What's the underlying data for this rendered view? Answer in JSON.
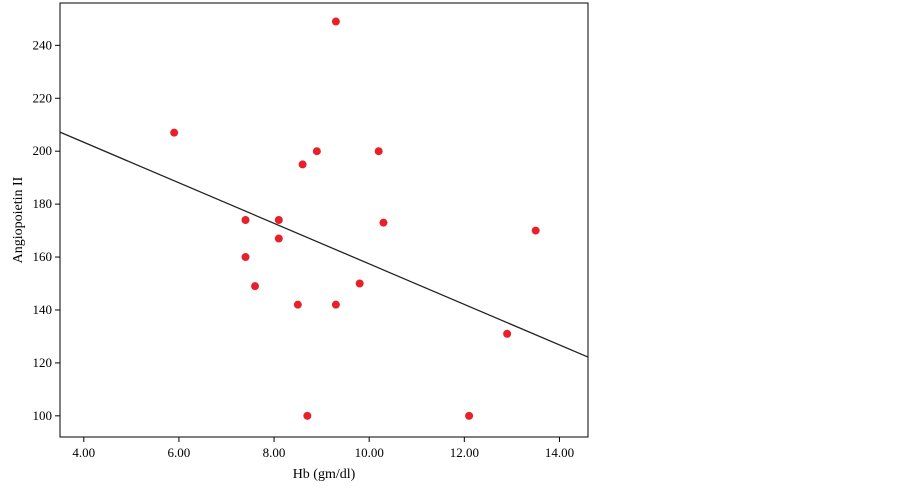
{
  "colors": {
    "point": "#e8202a",
    "line": "#222222",
    "frame": "#000000",
    "background": "#ffffff"
  },
  "chart_data": {
    "type": "scatter",
    "title": "",
    "xlabel": "Hb (gm/dl)",
    "ylabel": "Angiopoietin II",
    "xlim": [
      3.5,
      14.6
    ],
    "ylim": [
      92,
      256
    ],
    "xticks": [
      4,
      6,
      8,
      10,
      12,
      14
    ],
    "xtick_labels": [
      "4.00",
      "6.00",
      "8.00",
      "10.00",
      "12.00",
      "14.00"
    ],
    "yticks": [
      100,
      120,
      140,
      160,
      180,
      200,
      220,
      240
    ],
    "ytick_labels": [
      "100",
      "120",
      "140",
      "160",
      "180",
      "200",
      "220",
      "240"
    ],
    "grid": false,
    "points": [
      {
        "x": 5.9,
        "y": 207
      },
      {
        "x": 7.4,
        "y": 174
      },
      {
        "x": 7.4,
        "y": 160
      },
      {
        "x": 7.6,
        "y": 149
      },
      {
        "x": 8.1,
        "y": 174
      },
      {
        "x": 8.1,
        "y": 167
      },
      {
        "x": 8.5,
        "y": 142
      },
      {
        "x": 8.6,
        "y": 195
      },
      {
        "x": 8.7,
        "y": 100
      },
      {
        "x": 8.9,
        "y": 200
      },
      {
        "x": 9.3,
        "y": 249
      },
      {
        "x": 9.3,
        "y": 142
      },
      {
        "x": 9.8,
        "y": 150
      },
      {
        "x": 10.2,
        "y": 200
      },
      {
        "x": 10.3,
        "y": 173
      },
      {
        "x": 12.1,
        "y": 100
      },
      {
        "x": 12.9,
        "y": 131
      },
      {
        "x": 13.5,
        "y": 170
      }
    ],
    "fit_line": {
      "x": [
        3.5,
        14.6
      ],
      "y": [
        207.2,
        122.2
      ]
    }
  }
}
